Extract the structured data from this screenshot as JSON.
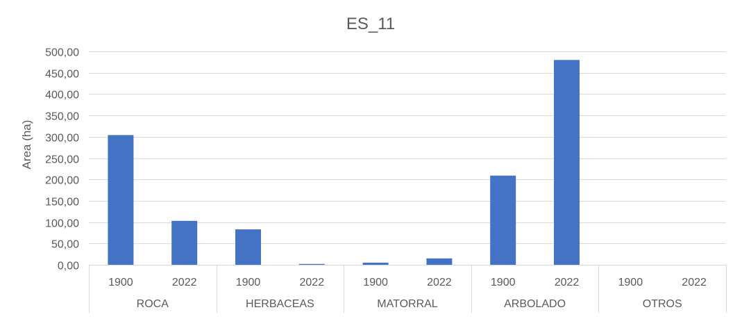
{
  "chart_data": {
    "type": "bar",
    "title": "ES_11",
    "ylabel": "Area (ha)",
    "xlabel": "",
    "ylim": [
      0,
      500
    ],
    "ytick_step": 50,
    "ytick_labels": [
      "0,00",
      "50,00",
      "100,00",
      "150,00",
      "200,00",
      "250,00",
      "300,00",
      "350,00",
      "400,00",
      "450,00",
      "500,00"
    ],
    "grid": true,
    "bar_color": "#4472C4",
    "groups": [
      {
        "label": "ROCA",
        "bars": [
          {
            "year": "1900",
            "value": 304
          },
          {
            "year": "2022",
            "value": 103
          }
        ]
      },
      {
        "label": "HERBACEAS",
        "bars": [
          {
            "year": "1900",
            "value": 83
          },
          {
            "year": "2022",
            "value": 2
          }
        ]
      },
      {
        "label": "MATORRAL",
        "bars": [
          {
            "year": "1900",
            "value": 5
          },
          {
            "year": "2022",
            "value": 15
          }
        ]
      },
      {
        "label": "ARBOLADO",
        "bars": [
          {
            "year": "1900",
            "value": 209
          },
          {
            "year": "2022",
            "value": 480
          }
        ]
      },
      {
        "label": "OTROS",
        "bars": [
          {
            "year": "1900",
            "value": 0
          },
          {
            "year": "2022",
            "value": 0
          }
        ]
      }
    ]
  }
}
